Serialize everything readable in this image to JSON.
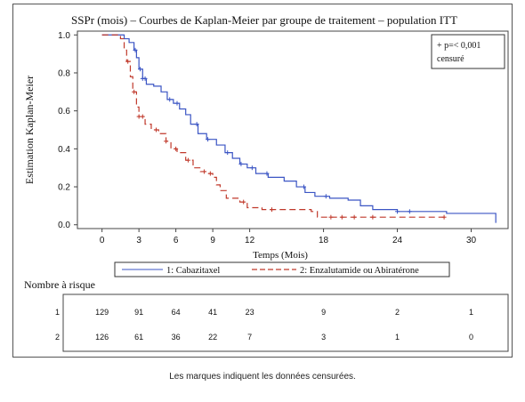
{
  "footnote": "Les marques indiquent les données censurées.",
  "chart_data": {
    "type": "line",
    "title": "SSPr (mois) – Courbes de Kaplan-Meier par groupe de traitement – population ITT",
    "xlabel": "Temps (Mois)",
    "ylabel": "Estimation Kaplan-Meier",
    "xlim": [
      -2,
      33
    ],
    "ylim": [
      -0.02,
      1.02
    ],
    "x_ticks": [
      "0",
      "3",
      "6",
      "9",
      "12",
      "18",
      "24",
      "30"
    ],
    "x_tick_values": [
      0,
      3,
      6,
      9,
      12,
      18,
      24,
      30
    ],
    "y_ticks": [
      "0.0",
      "0.2",
      "0.4",
      "0.6",
      "0.8",
      "1.0"
    ],
    "y_tick_values": [
      0,
      0.2,
      0.4,
      0.6,
      0.8,
      1.0
    ],
    "annotation": {
      "line1": "+ p=< 0,001",
      "line2": "censuré"
    },
    "legend_items": [
      "1: Cabazitaxel",
      "2: Enzalutamide ou Abiratérone"
    ],
    "series": [
      {
        "name": "1: Cabazitaxel",
        "color": "#3b55c4",
        "dash": "solid",
        "points": [
          [
            0,
            1.0
          ],
          [
            1.2,
            1.0
          ],
          [
            1.8,
            0.98
          ],
          [
            2.2,
            0.96
          ],
          [
            2.6,
            0.92
          ],
          [
            2.8,
            0.88
          ],
          [
            3.0,
            0.82
          ],
          [
            3.3,
            0.77
          ],
          [
            3.6,
            0.74
          ],
          [
            4.2,
            0.73
          ],
          [
            4.8,
            0.7
          ],
          [
            5.3,
            0.66
          ],
          [
            5.8,
            0.64
          ],
          [
            6.3,
            0.61
          ],
          [
            6.8,
            0.58
          ],
          [
            7.2,
            0.53
          ],
          [
            7.8,
            0.48
          ],
          [
            8.5,
            0.45
          ],
          [
            9.3,
            0.42
          ],
          [
            10.0,
            0.38
          ],
          [
            10.6,
            0.35
          ],
          [
            11.2,
            0.32
          ],
          [
            11.8,
            0.3
          ],
          [
            12.5,
            0.27
          ],
          [
            13.5,
            0.25
          ],
          [
            14.8,
            0.23
          ],
          [
            15.8,
            0.2
          ],
          [
            16.5,
            0.17
          ],
          [
            17.3,
            0.15
          ],
          [
            18.5,
            0.14
          ],
          [
            20.0,
            0.13
          ],
          [
            21.0,
            0.1
          ],
          [
            22.0,
            0.08
          ],
          [
            24.0,
            0.07
          ],
          [
            28.0,
            0.06
          ],
          [
            32.0,
            0.05
          ],
          [
            32.0,
            0.01
          ]
        ],
        "censored_x": [
          2.7,
          3.1,
          3.3,
          3.5,
          5.5,
          6.1,
          7.7,
          8.6,
          10.2,
          11.3,
          12.2,
          13.4,
          16.4,
          18.2,
          24.0,
          25.0
        ]
      },
      {
        "name": "2: Enzalutamide ou Abiratérone",
        "color": "#c0392b",
        "dash": "dashed",
        "points": [
          [
            0,
            1.0
          ],
          [
            1.5,
            0.98
          ],
          [
            1.8,
            0.92
          ],
          [
            2.0,
            0.86
          ],
          [
            2.3,
            0.78
          ],
          [
            2.5,
            0.7
          ],
          [
            2.8,
            0.62
          ],
          [
            3.0,
            0.57
          ],
          [
            3.5,
            0.53
          ],
          [
            4.0,
            0.5
          ],
          [
            4.6,
            0.48
          ],
          [
            5.2,
            0.44
          ],
          [
            5.6,
            0.4
          ],
          [
            6.1,
            0.38
          ],
          [
            6.8,
            0.34
          ],
          [
            7.4,
            0.3
          ],
          [
            8.0,
            0.28
          ],
          [
            8.6,
            0.27
          ],
          [
            9.0,
            0.25
          ],
          [
            9.3,
            0.21
          ],
          [
            9.6,
            0.18
          ],
          [
            10.1,
            0.14
          ],
          [
            11.2,
            0.12
          ],
          [
            11.8,
            0.09
          ],
          [
            13.0,
            0.08
          ],
          [
            17.0,
            0.07
          ],
          [
            17.5,
            0.04
          ],
          [
            28.0,
            0.04
          ]
        ],
        "censored_x": [
          2.1,
          2.6,
          3.0,
          3.3,
          4.4,
          5.2,
          6.0,
          7.0,
          8.3,
          8.8,
          11.5,
          13.8,
          18.6,
          19.5,
          20.5,
          22.0,
          27.8
        ]
      }
    ],
    "risk_table": {
      "title": "Nombre à risque",
      "x": [
        0,
        3,
        6,
        9,
        12,
        18,
        24,
        30
      ],
      "rows": [
        {
          "label": "1",
          "values": [
            "129",
            "91",
            "64",
            "41",
            "23",
            "9",
            "2",
            "1"
          ]
        },
        {
          "label": "2",
          "values": [
            "126",
            "61",
            "36",
            "22",
            "7",
            "3",
            "1",
            "0"
          ]
        }
      ]
    }
  }
}
